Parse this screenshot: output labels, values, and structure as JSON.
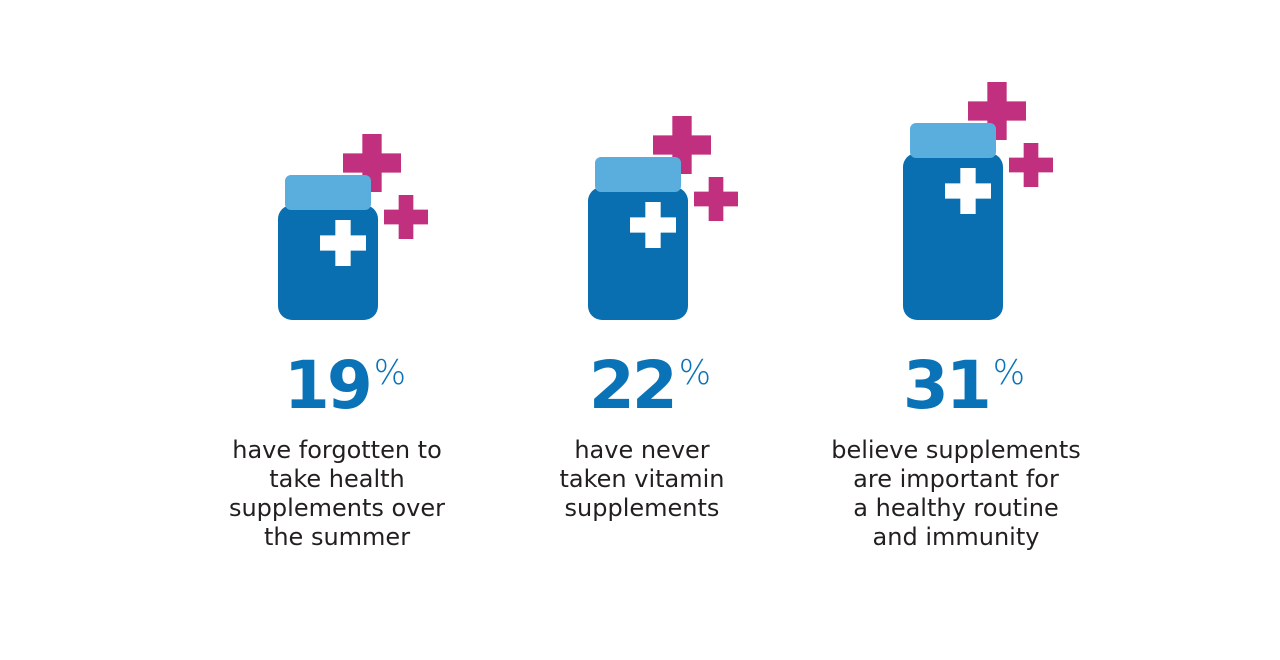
{
  "stats": [
    {
      "value": "19",
      "unit": "%",
      "lines": [
        "have forgotten to",
        "take health",
        "supplements over",
        "the summer"
      ]
    },
    {
      "value": "22",
      "unit": "%",
      "lines": [
        "have never",
        "taken vitamin",
        "supplements"
      ]
    },
    {
      "value": "31",
      "unit": "%",
      "lines": [
        "believe supplements",
        "are important for",
        "a healthy routine",
        "and immunity"
      ]
    }
  ]
}
